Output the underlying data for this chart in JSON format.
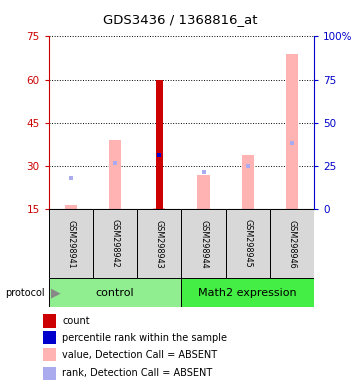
{
  "title": "GDS3436 / 1368816_at",
  "samples": [
    "GSM298941",
    "GSM298942",
    "GSM298943",
    "GSM298944",
    "GSM298945",
    "GSM298946"
  ],
  "ylim_left": [
    15,
    75
  ],
  "ylim_right": [
    0,
    100
  ],
  "yticks_left": [
    15,
    30,
    45,
    60,
    75
  ],
  "yticks_right": [
    0,
    25,
    50,
    75,
    100
  ],
  "ytick_labels_right": [
    "0",
    "25",
    "50",
    "75",
    "100%"
  ],
  "left_axis_color": "#cc0000",
  "right_axis_color": "#0000cc",
  "pink_bars": {
    "values": [
      16.5,
      39,
      15.5,
      27,
      34,
      69
    ],
    "color": "#ffb3b3"
  },
  "red_bar_index": 2,
  "red_bar_value": 60,
  "red_bar_color": "#cc0000",
  "blue_square_values": [
    26,
    31,
    34,
    28,
    30,
    38
  ],
  "blue_square_colors": [
    "#aaaaee",
    "#aaaaee",
    "#0000cc",
    "#aaaaee",
    "#aaaaee",
    "#aaaaee"
  ],
  "control_color": "#90ee90",
  "math2_color": "#44ee44",
  "legend_items": [
    {
      "color": "#cc0000",
      "label": "count"
    },
    {
      "color": "#0000cc",
      "label": "percentile rank within the sample"
    },
    {
      "color": "#ffb3b3",
      "label": "value, Detection Call = ABSENT"
    },
    {
      "color": "#aaaaee",
      "label": "rank, Detection Call = ABSENT"
    }
  ],
  "background_color": "#ffffff"
}
